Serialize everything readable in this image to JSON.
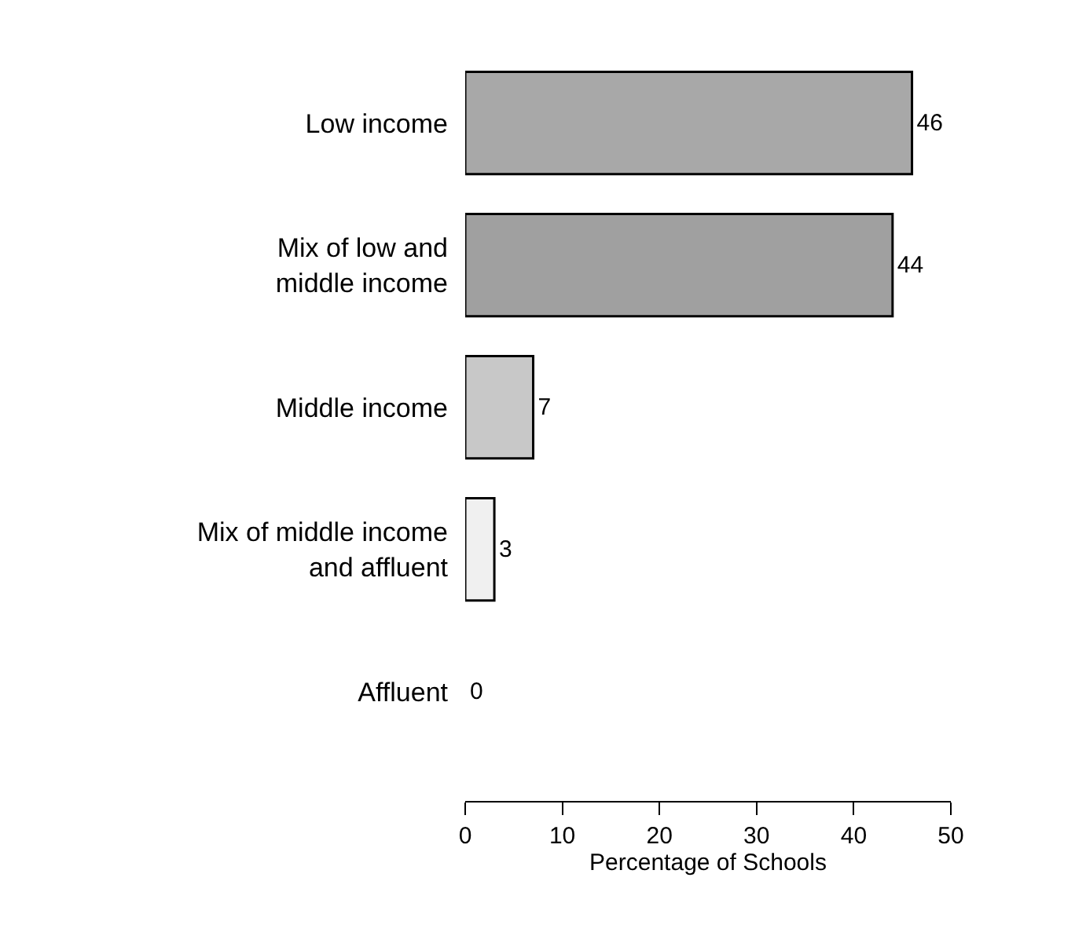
{
  "chart_data": {
    "type": "bar",
    "orientation": "horizontal",
    "xlabel": "Percentage of Schools",
    "categories": [
      "Low income",
      "Mix of low and\nmiddle income",
      "Middle income",
      "Mix of middle income\nand affluent",
      "Affluent"
    ],
    "values": [
      46,
      44,
      7,
      3,
      0
    ],
    "colors": [
      "#a8a8a8",
      "#a0a0a0",
      "#c8c8c8",
      "#f0f0f0",
      "#f0f0f0"
    ],
    "xlim": [
      0,
      50
    ],
    "xticks": [
      0,
      10,
      20,
      30,
      40,
      50
    ],
    "data_labels": true
  }
}
